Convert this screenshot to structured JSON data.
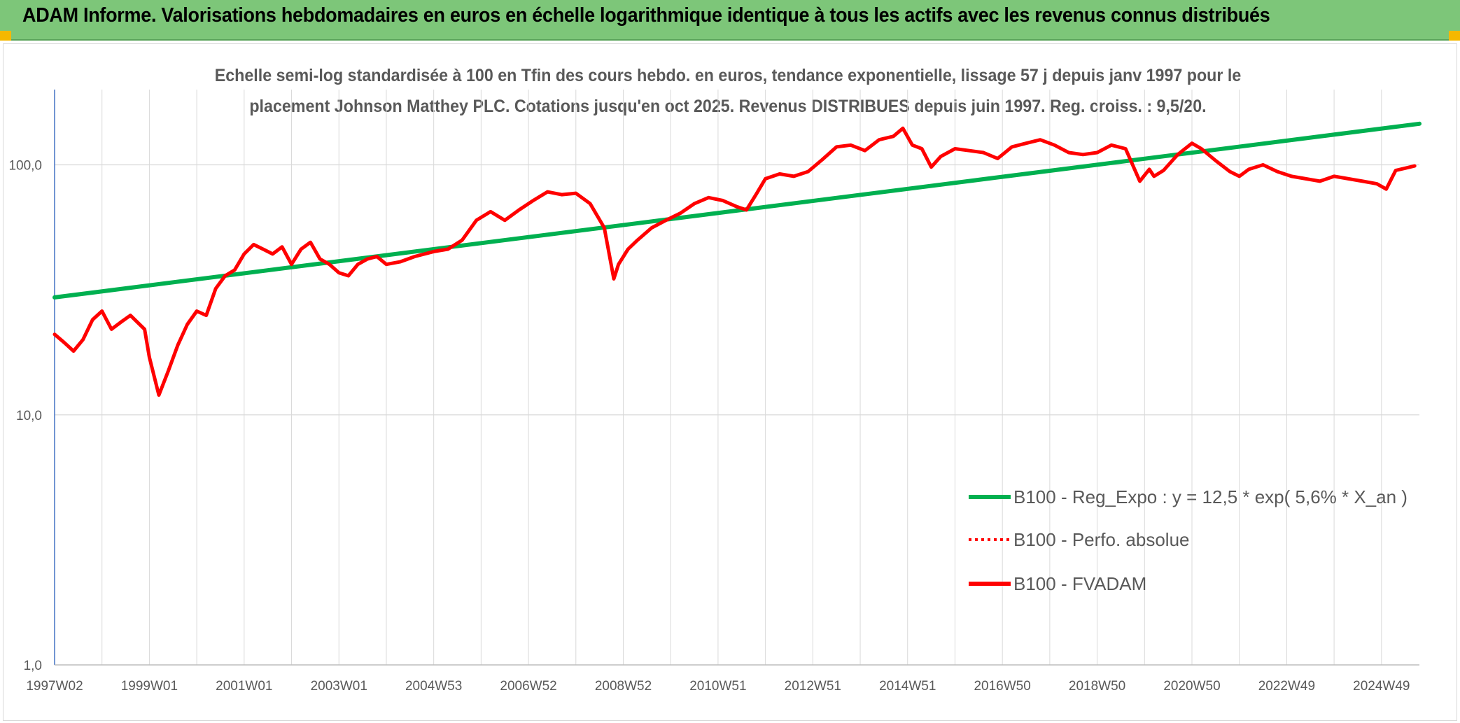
{
  "header": {
    "title": "ADAM Informe. Valorisations hebdomadaires en euros en échelle logarithmique identique à tous les actifs avec les revenus connus distribués"
  },
  "colors": {
    "header_bg": "#7dc679",
    "accent_corner": "#f5b800",
    "trend_line": "#00b050",
    "fvadam_line": "#ff0000",
    "perfo_line": "#ff0000",
    "grid": "#d9d9d9",
    "axis": "#4472c4"
  },
  "chart_data": {
    "type": "line",
    "title_line1": "Echelle semi-log standardisée à 100 en Tfin des cours hebdo. en euros, tendance exponentielle, lissage 57 j depuis janv 1997 pour le",
    "title_line2": "placement Johnson Matthey PLC. Cotations jusqu'en oct 2025. Revenus DISTRIBUES depuis juin 1997. Reg. croiss. : 9,5/20.",
    "y_scale": "log",
    "ylim": [
      1,
      200
    ],
    "y_ticks": [
      {
        "value": 1,
        "label": "1,0"
      },
      {
        "value": 10,
        "label": "10,0"
      },
      {
        "value": 100,
        "label": "100,0"
      }
    ],
    "xlim": [
      1997.0,
      2025.8
    ],
    "x_ticks": [
      {
        "value": 1997.0,
        "label": "1997W02"
      },
      {
        "value": 1999.0,
        "label": "1999W01"
      },
      {
        "value": 2001.0,
        "label": "2001W01"
      },
      {
        "value": 2003.0,
        "label": "2003W01"
      },
      {
        "value": 2005.0,
        "label": "2004W53"
      },
      {
        "value": 2007.0,
        "label": "2006W52"
      },
      {
        "value": 2009.0,
        "label": "2008W52"
      },
      {
        "value": 2011.0,
        "label": "2010W51"
      },
      {
        "value": 2013.0,
        "label": "2012W51"
      },
      {
        "value": 2015.0,
        "label": "2014W51"
      },
      {
        "value": 2017.0,
        "label": "2016W50"
      },
      {
        "value": 2019.0,
        "label": "2018W50"
      },
      {
        "value": 2021.0,
        "label": "2020W50"
      },
      {
        "value": 2023.0,
        "label": "2022W49"
      },
      {
        "value": 2025.0,
        "label": "2024W49"
      }
    ],
    "legend_position": "bottom-right",
    "series": [
      {
        "name": "B100 - Reg_Expo : y = 12,5 * exp( 5,6% *  X_an )",
        "style": "solid",
        "color": "#00b050",
        "x": [
          1997.0,
          2025.8
        ],
        "y": [
          29.5,
          146
        ]
      },
      {
        "name": "B100 - Perfo. absolue",
        "style": "dotted",
        "color": "#ff0000",
        "x": [],
        "y": []
      },
      {
        "name": "B100 - FVADAM",
        "style": "solid",
        "color": "#ff0000",
        "x": [
          1997.0,
          1997.2,
          1997.4,
          1997.6,
          1997.8,
          1998.0,
          1998.2,
          1998.4,
          1998.6,
          1998.9,
          1999.0,
          1999.2,
          1999.4,
          1999.6,
          1999.8,
          2000.0,
          2000.2,
          2000.4,
          2000.6,
          2000.8,
          2001.0,
          2001.2,
          2001.4,
          2001.6,
          2001.8,
          2002.0,
          2002.2,
          2002.4,
          2002.6,
          2002.8,
          2003.0,
          2003.2,
          2003.4,
          2003.6,
          2003.8,
          2004.0,
          2004.3,
          2004.6,
          2005.0,
          2005.3,
          2005.6,
          2005.9,
          2006.2,
          2006.5,
          2006.8,
          2007.1,
          2007.4,
          2007.7,
          2008.0,
          2008.3,
          2008.6,
          2008.8,
          2008.9,
          2009.1,
          2009.3,
          2009.6,
          2009.9,
          2010.2,
          2010.5,
          2010.8,
          2011.1,
          2011.4,
          2011.6,
          2011.8,
          2012.0,
          2012.3,
          2012.6,
          2012.9,
          2013.2,
          2013.5,
          2013.8,
          2014.1,
          2014.4,
          2014.7,
          2014.9,
          2015.1,
          2015.3,
          2015.5,
          2015.7,
          2016.0,
          2016.3,
          2016.6,
          2016.9,
          2017.2,
          2017.5,
          2017.8,
          2018.1,
          2018.4,
          2018.7,
          2019.0,
          2019.3,
          2019.6,
          2019.9,
          2020.1,
          2020.2,
          2020.4,
          2020.7,
          2021.0,
          2021.2,
          2021.5,
          2021.8,
          2022.0,
          2022.2,
          2022.5,
          2022.8,
          2023.1,
          2023.4,
          2023.7,
          2024.0,
          2024.3,
          2024.6,
          2024.9,
          2025.1,
          2025.3,
          2025.5,
          2025.7
        ],
        "y": [
          21,
          19.5,
          18,
          20,
          24,
          26,
          22,
          23.5,
          25,
          22,
          17,
          12,
          15,
          19,
          23,
          26,
          25,
          32,
          36,
          38,
          44,
          48,
          46,
          44,
          47,
          40,
          46,
          49,
          42,
          40,
          37,
          36,
          40,
          42,
          43,
          40,
          41,
          43,
          45,
          46,
          50,
          60,
          65,
          60,
          66,
          72,
          78,
          76,
          77,
          70,
          56,
          35,
          40,
          46,
          50,
          56,
          60,
          64,
          70,
          74,
          72,
          68,
          66,
          76,
          88,
          92,
          90,
          94,
          105,
          118,
          120,
          114,
          126,
          130,
          140,
          120,
          116,
          98,
          108,
          116,
          114,
          112,
          106,
          118,
          122,
          126,
          120,
          112,
          110,
          112,
          120,
          116,
          86,
          96,
          90,
          95,
          110,
          122,
          116,
          104,
          94,
          90,
          96,
          100,
          94,
          90,
          88,
          86,
          90,
          88,
          86,
          84,
          80,
          95,
          97,
          99
        ]
      }
    ]
  }
}
